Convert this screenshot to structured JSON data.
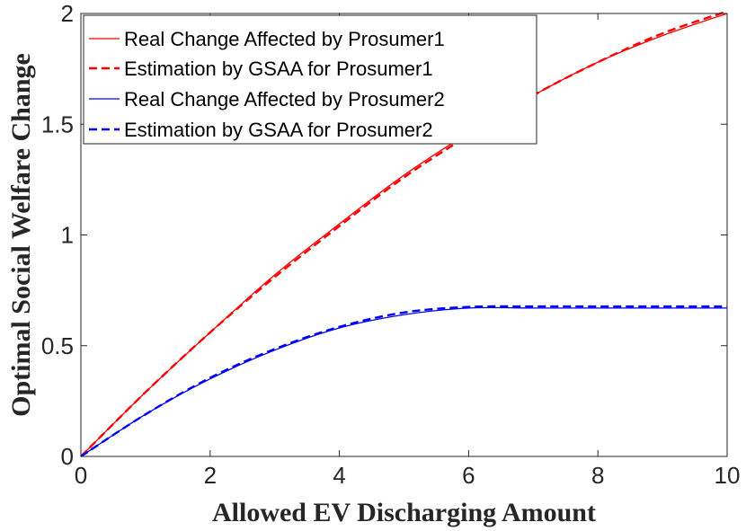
{
  "chart_data": {
    "type": "line",
    "title": "",
    "xlabel": "Allowed EV Discharging Amount",
    "ylabel": "Optimal Social Welfare Change",
    "xlim": [
      0,
      10
    ],
    "ylim": [
      0,
      2
    ],
    "xticks": [
      0,
      2,
      4,
      6,
      8,
      10
    ],
    "yticks": [
      0,
      0.5,
      1,
      1.5,
      2
    ],
    "xtick_labels": [
      "0",
      "2",
      "4",
      "6",
      "8",
      "10"
    ],
    "ytick_labels": [
      "0",
      "0.5",
      "1",
      "1.5",
      "2"
    ],
    "grid": false,
    "legend_position": "top-left",
    "x": [
      0,
      1,
      2,
      3,
      4,
      5,
      6,
      7,
      8,
      9,
      10
    ],
    "series": [
      {
        "name": "Real Change Affected by Prosumer1",
        "style": "solid",
        "color": "#ff0000",
        "values": [
          0,
          0.29,
          0.56,
          0.82,
          1.05,
          1.27,
          1.46,
          1.63,
          1.78,
          1.9,
          2.0
        ]
      },
      {
        "name": "Estimation by GSAA for Prosumer1",
        "style": "dashed",
        "color": "#ff0000",
        "values": [
          0,
          0.29,
          0.56,
          0.81,
          1.04,
          1.26,
          1.45,
          1.63,
          1.78,
          1.91,
          2.01
        ]
      },
      {
        "name": "Real Change Affected by Prosumer2",
        "style": "solid",
        "color": "#0000ff",
        "values": [
          0,
          0.19,
          0.35,
          0.48,
          0.58,
          0.64,
          0.67,
          0.67,
          0.67,
          0.67,
          0.67
        ]
      },
      {
        "name": "Estimation by GSAA for Prosumer2",
        "style": "dashed",
        "color": "#0000ff",
        "values": [
          0,
          0.19,
          0.355,
          0.485,
          0.585,
          0.65,
          0.675,
          0.677,
          0.677,
          0.677,
          0.677
        ]
      }
    ]
  }
}
